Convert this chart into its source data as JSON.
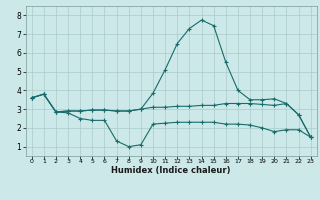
{
  "xlabel": "Humidex (Indice chaleur)",
  "background_color": "#cce8e8",
  "grid_color": "#aacccc",
  "line_color": "#1a6b6b",
  "xlim": [
    -0.5,
    23.5
  ],
  "ylim": [
    0.5,
    8.5
  ],
  "xticks": [
    0,
    1,
    2,
    3,
    4,
    5,
    6,
    7,
    8,
    9,
    10,
    11,
    12,
    13,
    14,
    15,
    16,
    17,
    18,
    19,
    20,
    21,
    22,
    23
  ],
  "yticks": [
    1,
    2,
    3,
    4,
    5,
    6,
    7,
    8
  ],
  "line1_x": [
    0,
    1,
    2,
    3,
    4,
    5,
    6,
    7,
    8,
    9,
    10,
    11,
    12,
    13,
    14,
    15,
    16,
    17,
    18,
    19,
    20,
    21,
    22,
    23
  ],
  "line1_y": [
    3.6,
    3.8,
    2.85,
    2.8,
    2.5,
    2.4,
    2.4,
    1.3,
    1.0,
    1.1,
    2.2,
    2.25,
    2.3,
    2.3,
    2.3,
    2.3,
    2.2,
    2.2,
    2.15,
    2.0,
    1.8,
    1.9,
    1.9,
    1.5
  ],
  "line2_x": [
    0,
    1,
    2,
    3,
    4,
    5,
    6,
    7,
    8,
    9,
    10,
    11,
    12,
    13,
    14,
    15,
    16,
    17,
    18,
    19,
    20,
    21,
    22,
    23
  ],
  "line2_y": [
    3.6,
    3.8,
    2.85,
    2.9,
    2.9,
    2.95,
    2.95,
    2.9,
    2.9,
    3.0,
    3.1,
    3.1,
    3.15,
    3.15,
    3.2,
    3.2,
    3.3,
    3.3,
    3.3,
    3.25,
    3.2,
    3.3,
    2.7,
    1.5
  ],
  "line3_x": [
    0,
    1,
    2,
    3,
    4,
    5,
    6,
    7,
    8,
    9,
    10,
    11,
    12,
    13,
    14,
    15,
    16,
    17,
    18,
    19,
    20,
    21,
    22,
    23
  ],
  "line3_y": [
    3.6,
    3.8,
    2.85,
    2.9,
    2.9,
    2.95,
    2.95,
    2.9,
    2.9,
    3.0,
    3.85,
    5.1,
    6.5,
    7.3,
    7.75,
    7.45,
    5.5,
    4.0,
    3.5,
    3.5,
    3.55,
    3.3,
    2.7,
    1.5
  ]
}
